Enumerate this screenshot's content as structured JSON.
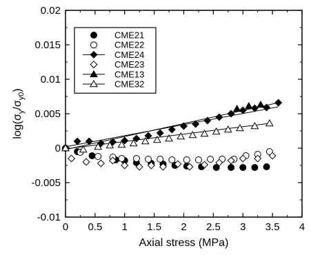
{
  "chart_data": {
    "type": "scatter",
    "xlabel": "Axial stress (MPa)",
    "ylabel": {
      "prefix": "log(σ",
      "sub1": "y",
      "mid": "/σ",
      "sub2": "y0",
      "suffix": ")"
    },
    "xlim": [
      0,
      4
    ],
    "ylim": [
      -0.01,
      0.02
    ],
    "x_ticks": [
      0,
      0.5,
      1,
      1.5,
      2,
      2.5,
      3,
      3.5,
      4
    ],
    "x_tick_labels": [
      "0",
      "0.5",
      "1",
      "1.5",
      "2",
      "2.5",
      "3",
      "3.5",
      "4"
    ],
    "y_ticks": [
      -0.01,
      -0.005,
      0,
      0.005,
      0.01,
      0.015,
      0.02
    ],
    "y_tick_labels": [
      "-0.01",
      "-0.005",
      "0",
      "0.005",
      "0.01",
      "0.015",
      "0.02"
    ],
    "grid": false,
    "legend_position": "top-left",
    "series": [
      {
        "name": "CME21",
        "marker": "circle-filled",
        "line": false,
        "points": [
          [
            0,
            0
          ],
          [
            0.2,
            -0.0005
          ],
          [
            0.45,
            -0.0011
          ],
          [
            0.85,
            -0.0017
          ],
          [
            1.0,
            -0.0018
          ],
          [
            1.2,
            -0.0021
          ],
          [
            1.45,
            -0.0022
          ],
          [
            1.65,
            -0.0023
          ],
          [
            1.85,
            -0.0025
          ],
          [
            2.05,
            -0.0026
          ],
          [
            2.3,
            -0.0027
          ],
          [
            2.55,
            -0.0028
          ],
          [
            2.8,
            -0.0028
          ],
          [
            3.0,
            -0.0028
          ],
          [
            3.2,
            -0.0028
          ],
          [
            3.4,
            -0.0027
          ]
        ]
      },
      {
        "name": "CME22",
        "marker": "circle-open",
        "line": false,
        "points": [
          [
            0,
            0
          ],
          [
            0.25,
            -0.0006
          ],
          [
            0.55,
            -0.0012
          ],
          [
            0.8,
            -0.0013
          ],
          [
            0.95,
            -0.0015
          ],
          [
            1.2,
            -0.0015
          ],
          [
            1.4,
            -0.0016
          ],
          [
            1.6,
            -0.0016
          ],
          [
            1.8,
            -0.0017
          ],
          [
            2.05,
            -0.0017
          ],
          [
            2.25,
            -0.0017
          ],
          [
            2.45,
            -0.0016
          ],
          [
            2.65,
            -0.0016
          ],
          [
            2.85,
            -0.0016
          ],
          [
            3.05,
            -0.0011
          ],
          [
            3.25,
            -0.0009
          ],
          [
            3.45,
            -0.0005
          ]
        ]
      },
      {
        "name": "CME24",
        "marker": "diamond-filled",
        "line": true,
        "points": [
          [
            0,
            0
          ],
          [
            0.2,
            0.001
          ],
          [
            0.4,
            0.001
          ],
          [
            0.6,
            0.0007
          ],
          [
            0.8,
            0.0009
          ],
          [
            1.0,
            0.0011
          ],
          [
            1.2,
            0.0014
          ],
          [
            1.4,
            0.0018
          ],
          [
            1.6,
            0.0022
          ],
          [
            1.8,
            0.0027
          ],
          [
            2.0,
            0.0032
          ],
          [
            2.2,
            0.0035
          ],
          [
            2.4,
            0.004
          ],
          [
            2.6,
            0.0045
          ],
          [
            2.8,
            0.005
          ],
          [
            3.0,
            0.0055
          ],
          [
            3.2,
            0.0058
          ],
          [
            3.4,
            0.0059
          ],
          [
            3.6,
            0.0066
          ]
        ],
        "fit_line": [
          [
            0,
            -0.0002
          ],
          [
            3.6,
            0.0066
          ]
        ]
      },
      {
        "name": "CME23",
        "marker": "diamond-open",
        "line": false,
        "points": [
          [
            0.1,
            -0.0015
          ],
          [
            0.35,
            -0.002
          ],
          [
            0.6,
            -0.0022
          ],
          [
            0.8,
            -0.0018
          ],
          [
            1.0,
            -0.0025
          ],
          [
            1.25,
            -0.0027
          ],
          [
            1.45,
            -0.0025
          ],
          [
            1.65,
            -0.0027
          ],
          [
            1.9,
            -0.0023
          ],
          [
            2.1,
            -0.0027
          ],
          [
            2.35,
            -0.0024
          ],
          [
            2.6,
            -0.0021
          ],
          [
            2.8,
            -0.0018
          ],
          [
            3.0,
            -0.0015
          ],
          [
            3.25,
            -0.0015
          ],
          [
            3.5,
            -0.0011
          ]
        ]
      },
      {
        "name": "CME13",
        "marker": "triangle-filled",
        "line": true,
        "points": [
          [
            0,
            0
          ],
          [
            2.9,
            0.0057
          ],
          [
            3.1,
            0.0061
          ],
          [
            3.3,
            0.0063
          ]
        ],
        "fit_line": [
          [
            0,
            0.0002
          ],
          [
            3.6,
            0.006
          ]
        ]
      },
      {
        "name": "CME32",
        "marker": "triangle-open",
        "line": true,
        "points": [
          [
            0,
            0
          ],
          [
            0.3,
            -0.0002
          ],
          [
            0.55,
            0.0002
          ],
          [
            0.75,
            0.0004
          ],
          [
            0.95,
            0.0005
          ],
          [
            1.15,
            0.0007
          ],
          [
            1.35,
            0.001
          ],
          [
            1.55,
            0.0012
          ],
          [
            1.75,
            0.0014
          ],
          [
            1.95,
            0.0017
          ],
          [
            2.15,
            0.0019
          ],
          [
            2.35,
            0.0021
          ],
          [
            2.55,
            0.0024
          ],
          [
            2.75,
            0.0027
          ],
          [
            2.95,
            0.0029
          ],
          [
            3.2,
            0.0032
          ],
          [
            3.45,
            0.0036
          ]
        ],
        "fit_line": [
          [
            0,
            -0.0001
          ],
          [
            3.45,
            0.0036
          ]
        ]
      }
    ]
  }
}
